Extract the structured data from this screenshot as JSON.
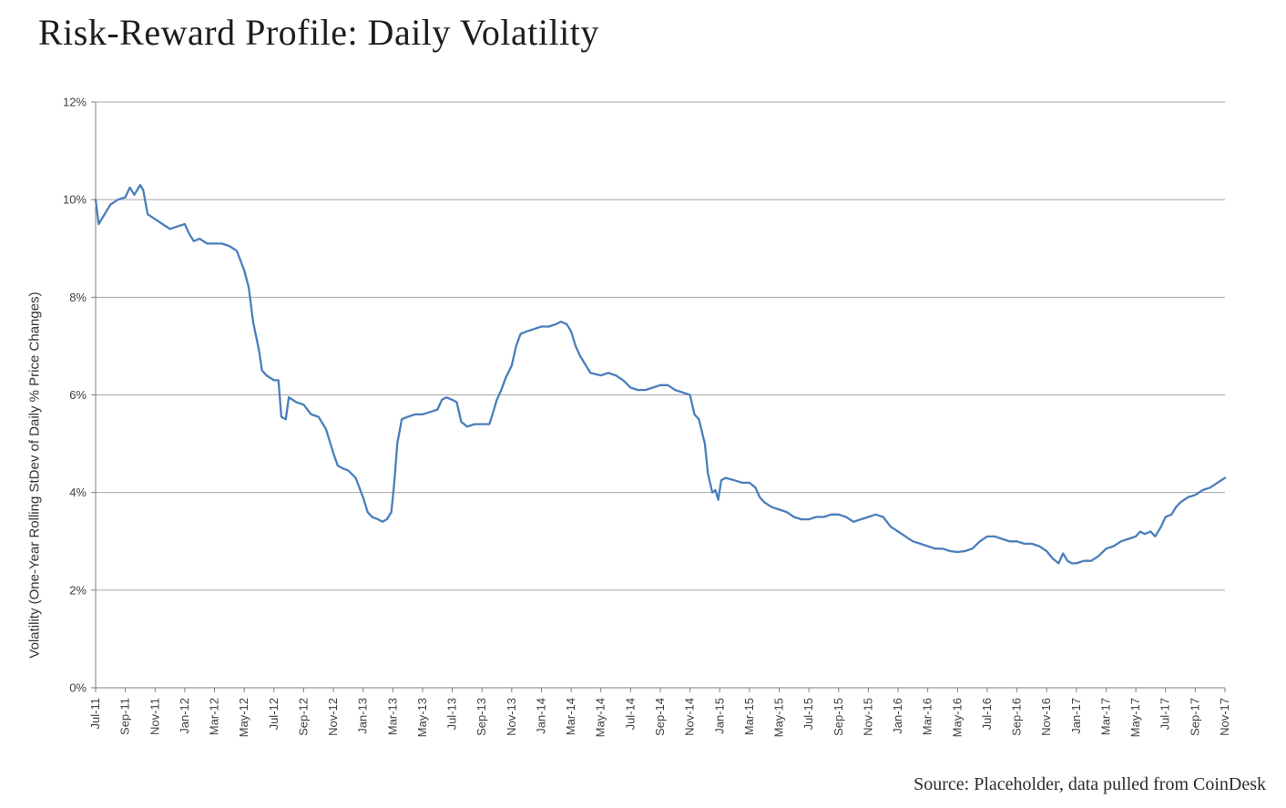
{
  "page": {
    "title": "Risk-Reward Profile: Daily Volatility",
    "source_note": "Source: Placeholder, data pulled from CoinDesk"
  },
  "chart_data": {
    "type": "line",
    "title": "Risk-Reward Profile: Daily Volatility",
    "xlabel": "",
    "ylabel": "Volatility (One-Year Rolling StDev of Daily % Price Changes)",
    "ylim": [
      0,
      12
    ],
    "y_tick_labels": [
      "0%",
      "2%",
      "4%",
      "6%",
      "8%",
      "10%",
      "12%"
    ],
    "x_tick_labels": [
      "Jul-11",
      "Sep-11",
      "Nov-11",
      "Jan-12",
      "Mar-12",
      "May-12",
      "Jul-12",
      "Sep-12",
      "Nov-12",
      "Jan-13",
      "Mar-13",
      "May-13",
      "Jul-13",
      "Sep-13",
      "Nov-13",
      "Jan-14",
      "Mar-14",
      "May-14",
      "Jul-14",
      "Sep-14",
      "Nov-14",
      "Jan-15",
      "Mar-15",
      "May-15",
      "Jul-15",
      "Sep-15",
      "Nov-15",
      "Jan-16",
      "Mar-16",
      "May-16",
      "Jul-16",
      "Sep-16",
      "Nov-16",
      "Jan-17",
      "Mar-17",
      "May-17",
      "Jul-17",
      "Sep-17",
      "Nov-17"
    ],
    "x_tick_positions_months": [
      0,
      2,
      4,
      6,
      8,
      10,
      12,
      14,
      16,
      18,
      20,
      22,
      24,
      26,
      28,
      30,
      32,
      34,
      36,
      38,
      40,
      42,
      44,
      46,
      48,
      50,
      52,
      54,
      56,
      58,
      60,
      62,
      64,
      66,
      68,
      70,
      72,
      74,
      76
    ],
    "grid": "horizontal",
    "legend": "none",
    "line_color": "#4a7ebb",
    "gridline_color": "#a6a6a6",
    "axis_color": "#7f7f7f",
    "series": [
      {
        "name": "volatility",
        "points": [
          [
            0,
            10.0
          ],
          [
            0.2,
            9.5
          ],
          [
            0.5,
            9.65
          ],
          [
            1,
            9.9
          ],
          [
            1.5,
            10.0
          ],
          [
            2,
            10.05
          ],
          [
            2.3,
            10.25
          ],
          [
            2.6,
            10.1
          ],
          [
            3,
            10.3
          ],
          [
            3.2,
            10.2
          ],
          [
            3.5,
            9.7
          ],
          [
            4,
            9.6
          ],
          [
            4.5,
            9.5
          ],
          [
            5,
            9.4
          ],
          [
            5.5,
            9.45
          ],
          [
            6,
            9.5
          ],
          [
            6.3,
            9.3
          ],
          [
            6.6,
            9.15
          ],
          [
            7,
            9.2
          ],
          [
            7.5,
            9.1
          ],
          [
            8,
            9.1
          ],
          [
            8.5,
            9.1
          ],
          [
            9,
            9.05
          ],
          [
            9.5,
            8.95
          ],
          [
            10,
            8.55
          ],
          [
            10.3,
            8.2
          ],
          [
            10.6,
            7.5
          ],
          [
            11,
            6.9
          ],
          [
            11.2,
            6.5
          ],
          [
            11.5,
            6.4
          ],
          [
            12,
            6.3
          ],
          [
            12.3,
            6.3
          ],
          [
            12.5,
            5.55
          ],
          [
            12.8,
            5.5
          ],
          [
            13,
            5.95
          ],
          [
            13.5,
            5.85
          ],
          [
            14,
            5.8
          ],
          [
            14.5,
            5.6
          ],
          [
            15,
            5.55
          ],
          [
            15.5,
            5.3
          ],
          [
            16,
            4.8
          ],
          [
            16.3,
            4.55
          ],
          [
            16.6,
            4.5
          ],
          [
            17,
            4.45
          ],
          [
            17.5,
            4.3
          ],
          [
            18,
            3.9
          ],
          [
            18.3,
            3.6
          ],
          [
            18.6,
            3.5
          ],
          [
            19,
            3.45
          ],
          [
            19.3,
            3.4
          ],
          [
            19.6,
            3.45
          ],
          [
            19.9,
            3.6
          ],
          [
            20.1,
            4.2
          ],
          [
            20.3,
            5.0
          ],
          [
            20.6,
            5.5
          ],
          [
            21,
            5.55
          ],
          [
            21.5,
            5.6
          ],
          [
            22,
            5.6
          ],
          [
            22.5,
            5.65
          ],
          [
            23,
            5.7
          ],
          [
            23.3,
            5.9
          ],
          [
            23.6,
            5.95
          ],
          [
            24,
            5.9
          ],
          [
            24.3,
            5.85
          ],
          [
            24.6,
            5.45
          ],
          [
            25,
            5.35
          ],
          [
            25.5,
            5.4
          ],
          [
            26,
            5.4
          ],
          [
            26.5,
            5.4
          ],
          [
            26.8,
            5.7
          ],
          [
            27,
            5.9
          ],
          [
            27.3,
            6.1
          ],
          [
            27.6,
            6.35
          ],
          [
            28,
            6.6
          ],
          [
            28.3,
            7.0
          ],
          [
            28.6,
            7.25
          ],
          [
            29,
            7.3
          ],
          [
            29.5,
            7.35
          ],
          [
            30,
            7.4
          ],
          [
            30.5,
            7.4
          ],
          [
            31,
            7.45
          ],
          [
            31.3,
            7.5
          ],
          [
            31.7,
            7.45
          ],
          [
            32,
            7.3
          ],
          [
            32.3,
            7.0
          ],
          [
            32.6,
            6.8
          ],
          [
            33,
            6.6
          ],
          [
            33.3,
            6.45
          ],
          [
            34,
            6.4
          ],
          [
            34.5,
            6.45
          ],
          [
            35,
            6.4
          ],
          [
            35.5,
            6.3
          ],
          [
            36,
            6.15
          ],
          [
            36.5,
            6.1
          ],
          [
            37,
            6.1
          ],
          [
            37.5,
            6.15
          ],
          [
            38,
            6.2
          ],
          [
            38.5,
            6.2
          ],
          [
            39,
            6.1
          ],
          [
            39.5,
            6.05
          ],
          [
            40,
            6.0
          ],
          [
            40.3,
            5.6
          ],
          [
            40.6,
            5.5
          ],
          [
            41,
            5.0
          ],
          [
            41.2,
            4.4
          ],
          [
            41.5,
            4.0
          ],
          [
            41.7,
            4.05
          ],
          [
            41.9,
            3.85
          ],
          [
            42.1,
            4.25
          ],
          [
            42.4,
            4.3
          ],
          [
            43,
            4.25
          ],
          [
            43.5,
            4.2
          ],
          [
            44,
            4.2
          ],
          [
            44.4,
            4.1
          ],
          [
            44.7,
            3.9
          ],
          [
            45,
            3.8
          ],
          [
            45.5,
            3.7
          ],
          [
            46,
            3.65
          ],
          [
            46.5,
            3.6
          ],
          [
            47,
            3.5
          ],
          [
            47.5,
            3.45
          ],
          [
            48,
            3.45
          ],
          [
            48.5,
            3.5
          ],
          [
            49,
            3.5
          ],
          [
            49.5,
            3.55
          ],
          [
            50,
            3.55
          ],
          [
            50.5,
            3.5
          ],
          [
            51,
            3.4
          ],
          [
            51.5,
            3.45
          ],
          [
            52,
            3.5
          ],
          [
            52.5,
            3.55
          ],
          [
            53,
            3.5
          ],
          [
            53.5,
            3.3
          ],
          [
            54,
            3.2
          ],
          [
            54.5,
            3.1
          ],
          [
            55,
            3.0
          ],
          [
            55.5,
            2.95
          ],
          [
            56,
            2.9
          ],
          [
            56.5,
            2.85
          ],
          [
            57,
            2.85
          ],
          [
            57.5,
            2.8
          ],
          [
            58,
            2.78
          ],
          [
            58.5,
            2.8
          ],
          [
            59,
            2.85
          ],
          [
            59.5,
            3.0
          ],
          [
            60,
            3.1
          ],
          [
            60.5,
            3.1
          ],
          [
            61,
            3.05
          ],
          [
            61.5,
            3.0
          ],
          [
            62,
            3.0
          ],
          [
            62.5,
            2.95
          ],
          [
            63,
            2.95
          ],
          [
            63.5,
            2.9
          ],
          [
            64,
            2.8
          ],
          [
            64.4,
            2.65
          ],
          [
            64.8,
            2.55
          ],
          [
            65.1,
            2.75
          ],
          [
            65.4,
            2.6
          ],
          [
            65.7,
            2.55
          ],
          [
            66,
            2.55
          ],
          [
            66.5,
            2.6
          ],
          [
            67,
            2.6
          ],
          [
            67.5,
            2.7
          ],
          [
            68,
            2.85
          ],
          [
            68.5,
            2.9
          ],
          [
            69,
            3.0
          ],
          [
            69.5,
            3.05
          ],
          [
            70,
            3.1
          ],
          [
            70.3,
            3.2
          ],
          [
            70.6,
            3.15
          ],
          [
            71,
            3.2
          ],
          [
            71.3,
            3.1
          ],
          [
            71.7,
            3.3
          ],
          [
            72,
            3.5
          ],
          [
            72.4,
            3.55
          ],
          [
            72.7,
            3.7
          ],
          [
            73,
            3.8
          ],
          [
            73.5,
            3.9
          ],
          [
            74,
            3.95
          ],
          [
            74.5,
            4.05
          ],
          [
            75,
            4.1
          ],
          [
            75.5,
            4.2
          ],
          [
            76,
            4.3
          ]
        ]
      }
    ]
  }
}
